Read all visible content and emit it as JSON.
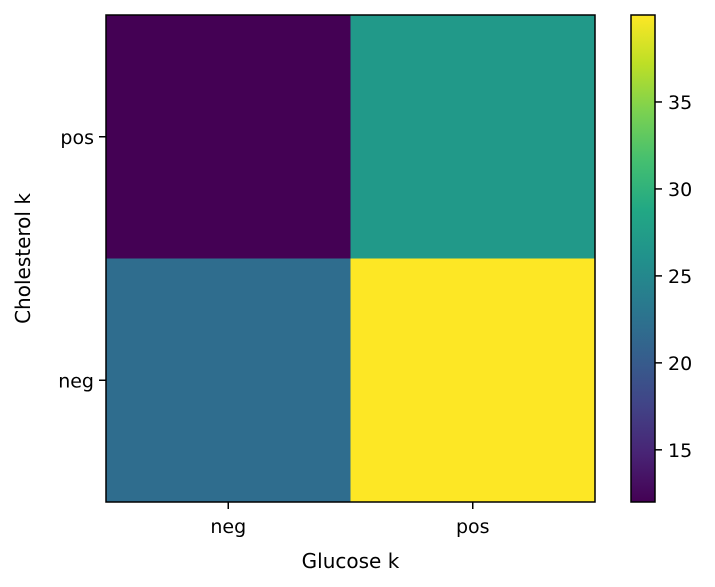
{
  "chart_data": {
    "type": "heatmap",
    "title": "",
    "xlabel": "Glucose k",
    "ylabel": "Cholesterol k",
    "x_categories": [
      "neg",
      "pos"
    ],
    "y_categories": [
      "pos",
      "neg"
    ],
    "values": [
      [
        12,
        27
      ],
      [
        22,
        40
      ]
    ],
    "colormap": "viridis",
    "colorbar": {
      "range": [
        12,
        40
      ],
      "ticks": [
        15,
        20,
        25,
        30,
        35
      ]
    },
    "grid": false
  }
}
